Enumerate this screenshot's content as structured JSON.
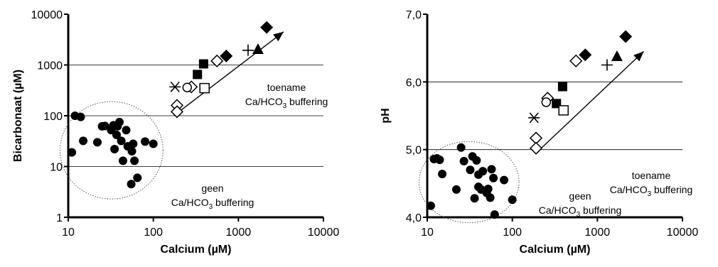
{
  "chart_data": [
    {
      "type": "scatter",
      "xlabel": "Calcium (µM)",
      "ylabel": "Bicarbonaat (µM)",
      "xscale": "log",
      "yscale": "log",
      "xlim": [
        10,
        10000
      ],
      "ylim": [
        1,
        10000
      ],
      "xticks": [
        "10",
        "100",
        "1000",
        "10000"
      ],
      "yticks": [
        "1",
        "10",
        "100",
        "1000",
        "10000"
      ],
      "grid": "horizontal",
      "annotations": [
        {
          "line1": "toename",
          "line2_prefix": "Ca/HCO",
          "line2_sub": "3",
          "line2_suffix": " buffering"
        },
        {
          "line1": "geen",
          "line2_prefix": "Ca/HCO",
          "line2_sub": "3",
          "line2_suffix": " buffering"
        }
      ],
      "arrow": {
        "from": [
          200,
          120
        ],
        "to": [
          3400,
          4500
        ]
      },
      "ellipse": {
        "center": [
          34,
          28
        ],
        "x_range": [
          8,
          130
        ],
        "y_range": [
          2.3,
          190
        ]
      },
      "series": [
        {
          "marker": "filled-circle",
          "points": [
            [
              11,
              19
            ],
            [
              12,
              100
            ],
            [
              14,
              95
            ],
            [
              15,
              32
            ],
            [
              11,
              19
            ],
            [
              22,
              30
            ],
            [
              25,
              62
            ],
            [
              27,
              63
            ],
            [
              32,
              52
            ],
            [
              34,
              65
            ],
            [
              35,
              22
            ],
            [
              37,
              42
            ],
            [
              38,
              62
            ],
            [
              40,
              75
            ],
            [
              42,
              32
            ],
            [
              44,
              13
            ],
            [
              48,
              52
            ],
            [
              50,
              25
            ],
            [
              55,
              4.5
            ],
            [
              56,
              20
            ],
            [
              58,
              28
            ],
            [
              60,
              13
            ],
            [
              65,
              6
            ],
            [
              80,
              31
            ],
            [
              100,
              28
            ]
          ]
        },
        {
          "marker": "open-diamond",
          "points": [
            [
              190,
              160
            ],
            [
              190,
              120
            ],
            [
              280,
              370
            ],
            [
              560,
              1200
            ]
          ]
        },
        {
          "marker": "asterisk",
          "points": [
            [
              180,
              370
            ]
          ]
        },
        {
          "marker": "open-circle",
          "points": [
            [
              250,
              360
            ]
          ]
        },
        {
          "marker": "filled-square",
          "points": [
            [
              330,
              650
            ],
            [
              390,
              1050
            ]
          ]
        },
        {
          "marker": "open-square",
          "points": [
            [
              400,
              350
            ]
          ]
        },
        {
          "marker": "filled-diamond",
          "points": [
            [
              720,
              1500
            ],
            [
              2150,
              5500
            ]
          ]
        },
        {
          "marker": "plus",
          "points": [
            [
              1300,
              1950
            ]
          ]
        },
        {
          "marker": "filled-triangle",
          "points": [
            [
              1700,
              2000
            ]
          ]
        }
      ]
    },
    {
      "type": "scatter",
      "xlabel": "Calcium (µM)",
      "ylabel": "pH",
      "xscale": "log",
      "yscale": "linear",
      "xlim": [
        10,
        10000
      ],
      "ylim": [
        4.0,
        7.0
      ],
      "xticks": [
        "10",
        "100",
        "1000",
        "10000"
      ],
      "yticks": [
        "4,0",
        "5,0",
        "6,0",
        "7,0"
      ],
      "grid": "horizontal",
      "annotations": [
        {
          "line1": "toename",
          "line2_prefix": "Ca/HCO",
          "line2_sub": "3",
          "line2_suffix": " buffering"
        },
        {
          "line1": "geen",
          "line2_prefix": "Ca/HCO",
          "line2_sub": "3",
          "line2_suffix": " buffering"
        }
      ],
      "arrow": {
        "from": [
          210,
          5.0
        ],
        "to": [
          3500,
          6.45
        ]
      },
      "ellipse": {
        "center": [
          34,
          4.45
        ],
        "x_range": [
          8,
          120
        ],
        "y_range": [
          3.92,
          5.12
        ]
      },
      "series": [
        {
          "marker": "filled-circle",
          "points": [
            [
              11,
              4.17
            ],
            [
              12,
              4.86
            ],
            [
              13,
              4.87
            ],
            [
              14,
              4.85
            ],
            [
              15,
              4.64
            ],
            [
              22,
              4.41
            ],
            [
              25,
              5.03
            ],
            [
              27,
              4.83
            ],
            [
              32,
              4.7
            ],
            [
              34,
              4.9
            ],
            [
              36,
              4.28
            ],
            [
              38,
              4.84
            ],
            [
              40,
              4.45
            ],
            [
              40,
              4.63
            ],
            [
              43,
              4.41
            ],
            [
              45,
              4.68
            ],
            [
              50,
              4.36
            ],
            [
              52,
              4.42
            ],
            [
              55,
              4.29
            ],
            [
              57,
              4.71
            ],
            [
              60,
              4.58
            ],
            [
              62,
              4.04
            ],
            [
              80,
              4.55
            ],
            [
              100,
              4.26
            ]
          ]
        },
        {
          "marker": "open-diamond",
          "points": [
            [
              190,
              5.17
            ],
            [
              190,
              5.02
            ],
            [
              260,
              5.76
            ],
            [
              560,
              6.31
            ]
          ]
        },
        {
          "marker": "asterisk",
          "points": [
            [
              180,
              5.47
            ]
          ]
        },
        {
          "marker": "open-circle",
          "points": [
            [
              250,
              5.7
            ]
          ]
        },
        {
          "marker": "filled-square",
          "points": [
            [
              330,
              5.68
            ],
            [
              390,
              5.93
            ]
          ]
        },
        {
          "marker": "open-square",
          "points": [
            [
              400,
              5.58
            ]
          ]
        },
        {
          "marker": "filled-diamond",
          "points": [
            [
              720,
              6.4
            ],
            [
              2150,
              6.67
            ]
          ]
        },
        {
          "marker": "plus",
          "points": [
            [
              1300,
              6.25
            ]
          ]
        },
        {
          "marker": "filled-triangle",
          "points": [
            [
              1700,
              6.37
            ]
          ]
        }
      ]
    }
  ]
}
